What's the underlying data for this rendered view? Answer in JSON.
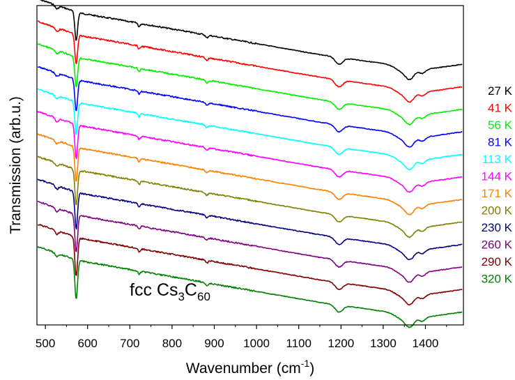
{
  "chart_data": {
    "type": "line",
    "xlabel": "Wavenumber (cm",
    "xlabel_sup": "-1",
    "xlabel_end": ")",
    "ylabel": "Transmission (arb.u.)",
    "xlim": [
      480,
      1490
    ],
    "xticks": [
      500,
      600,
      700,
      800,
      900,
      1000,
      1100,
      1200,
      1300,
      1400
    ],
    "y_tick_labels": false,
    "annotation": {
      "prefix": "fcc Cs",
      "sub1": "3",
      "mid": "C",
      "sub2": "60"
    },
    "series": [
      {
        "name": "27 K",
        "color": "#000000",
        "offset": 11
      },
      {
        "name": "41 K",
        "color": "#ff0000",
        "offset": 10
      },
      {
        "name": "56 K",
        "color": "#00ee00",
        "offset": 9
      },
      {
        "name": "81 K",
        "color": "#0000ff",
        "offset": 8
      },
      {
        "name": "113 K",
        "color": "#00ffff",
        "offset": 7
      },
      {
        "name": "144 K",
        "color": "#ff00ff",
        "offset": 6
      },
      {
        "name": "171 K",
        "color": "#ff8000",
        "offset": 5
      },
      {
        "name": "200 K",
        "color": "#808000",
        "offset": 4
      },
      {
        "name": "230 K",
        "color": "#000080",
        "offset": 3
      },
      {
        "name": "260 K",
        "color": "#800080",
        "offset": 2
      },
      {
        "name": "290 K",
        "color": "#800000",
        "offset": 1
      },
      {
        "name": "320 K",
        "color": "#008000",
        "offset": 0
      }
    ],
    "features_cm-1": [
      {
        "x": 527,
        "kind": "dip"
      },
      {
        "x": 575,
        "kind": "strong-dip"
      },
      {
        "x": 722,
        "kind": "dip"
      },
      {
        "x": 882,
        "kind": "dip"
      },
      {
        "x": 1195,
        "kind": "dip"
      },
      {
        "x": 1362,
        "kind": "broad-dip"
      },
      {
        "x": 1392,
        "kind": "dip"
      }
    ]
  }
}
